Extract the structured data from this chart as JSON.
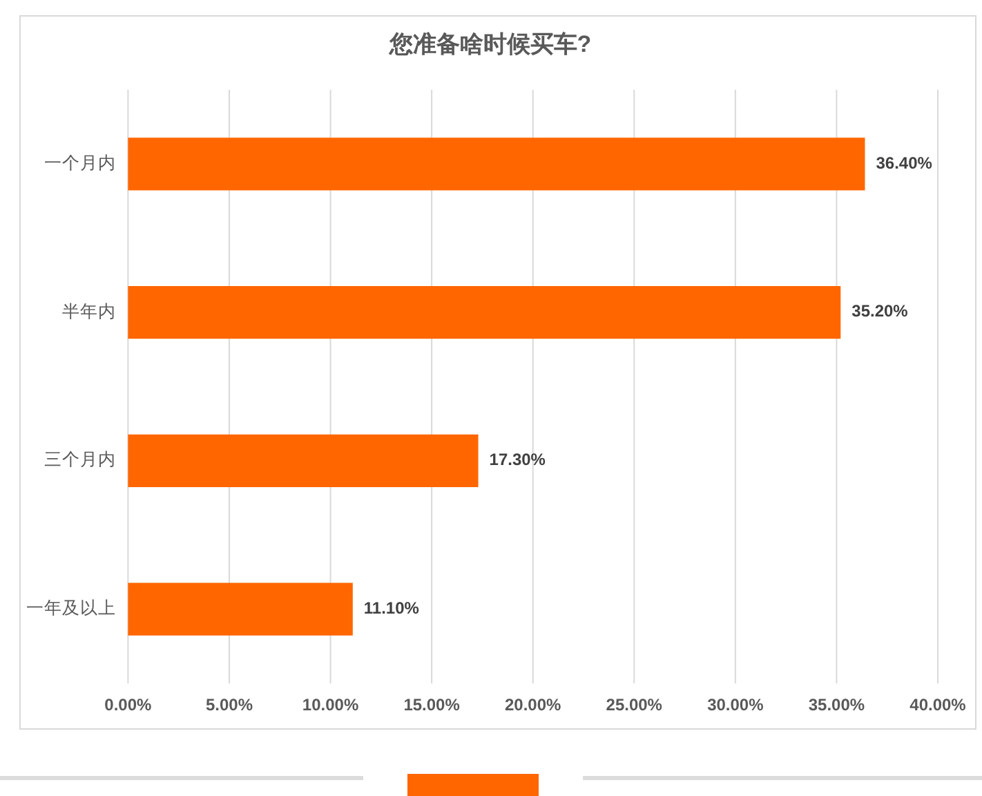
{
  "chart_data": {
    "type": "bar",
    "orientation": "horizontal",
    "title": "您准备啥时候买车?",
    "categories": [
      "一个月内",
      "半年内",
      "三个月内",
      "一年及以上"
    ],
    "values": [
      36.4,
      35.2,
      17.3,
      11.1
    ],
    "value_labels": [
      "36.40%",
      "35.20%",
      "17.30%",
      "11.10%"
    ],
    "color": "#ff6600",
    "xlim": [
      0,
      40
    ],
    "xticks": [
      {
        "value": 0,
        "label": "0.00%"
      },
      {
        "value": 5,
        "label": "5.00%"
      },
      {
        "value": 10,
        "label": "10.00%"
      },
      {
        "value": 15,
        "label": "15.00%"
      },
      {
        "value": 20,
        "label": "20.00%"
      },
      {
        "value": 25,
        "label": "25.00%"
      },
      {
        "value": 30,
        "label": "30.00%"
      },
      {
        "value": 35,
        "label": "35.00%"
      },
      {
        "value": 40,
        "label": "40.00%"
      }
    ],
    "grid": "x"
  }
}
